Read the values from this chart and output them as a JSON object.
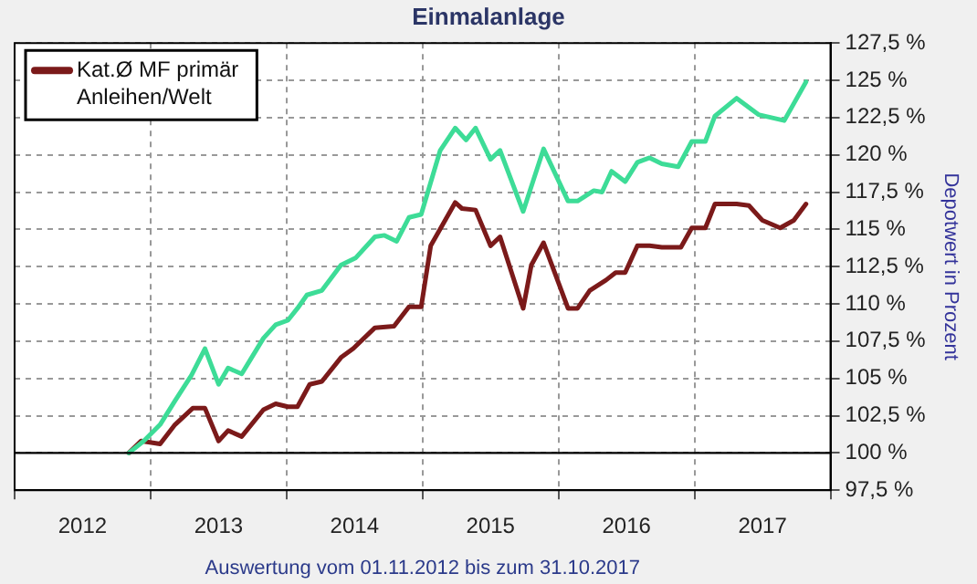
{
  "chart_data": {
    "type": "line",
    "title": "Einmalanlage",
    "ylabel": "Depotwert in Prozent",
    "annotations": [
      "Auswertung vom 01.11.2012 bis zum 31.10.2017"
    ],
    "xlim": [
      2012,
      2018
    ],
    "xticks": [
      {
        "value": 2012,
        "label": null
      },
      {
        "value": 2012.5,
        "label": "2012"
      },
      {
        "value": 2013,
        "label": null
      },
      {
        "value": 2013.5,
        "label": "2013"
      },
      {
        "value": 2014,
        "label": null
      },
      {
        "value": 2014.5,
        "label": "2014"
      },
      {
        "value": 2015,
        "label": null
      },
      {
        "value": 2015.5,
        "label": "2015"
      },
      {
        "value": 2016,
        "label": null
      },
      {
        "value": 2016.5,
        "label": "2016"
      },
      {
        "value": 2017,
        "label": null
      },
      {
        "value": 2017.5,
        "label": "2017"
      },
      {
        "value": 2018,
        "label": null
      }
    ],
    "ylim": [
      97.5,
      127.5
    ],
    "yticks": [
      {
        "value": 97.5,
        "label": "97,5 %"
      },
      {
        "value": 100,
        "label": "100 %"
      },
      {
        "value": 102.5,
        "label": "102,5 %"
      },
      {
        "value": 105,
        "label": "105 %"
      },
      {
        "value": 107.5,
        "label": "107,5 %"
      },
      {
        "value": 110,
        "label": "110 %"
      },
      {
        "value": 112.5,
        "label": "112,5 %"
      },
      {
        "value": 115,
        "label": "115 %"
      },
      {
        "value": 117.5,
        "label": "117,5 %"
      },
      {
        "value": 120,
        "label": "120 %"
      },
      {
        "value": 122.5,
        "label": "122,5 %"
      },
      {
        "value": 125,
        "label": "125 %"
      },
      {
        "value": 127.5,
        "label": "127,5 %"
      }
    ],
    "ref_lines": [
      {
        "axis": "y",
        "value": 100,
        "color": "#000000"
      }
    ],
    "grid": true,
    "legend": "top left",
    "line_style": "solid",
    "marker": "none",
    "series": [
      {
        "color": "#3ddc97",
        "x": [
          2012.84,
          2012.95,
          2013.07,
          2013.18,
          2013.3,
          2013.4,
          2013.5,
          2013.57,
          2013.67,
          2013.73,
          2013.83,
          2013.92,
          2014.01,
          2014.08,
          2014.15,
          2014.26,
          2014.4,
          2014.51,
          2014.65,
          2014.72,
          2014.81,
          2014.9,
          2014.99,
          2015.13,
          2015.24,
          2015.32,
          2015.39,
          2015.5,
          2015.57,
          2015.74,
          2015.89,
          2016.07,
          2016.14,
          2016.26,
          2016.32,
          2016.39,
          2016.49,
          2016.58,
          2016.67,
          2016.76,
          2016.88,
          2016.98,
          2017.08,
          2017.15,
          2017.31,
          2017.47,
          2017.66,
          2017.82
        ],
        "values": [
          100,
          100.8,
          101.9,
          103.5,
          105.2,
          107,
          104.6,
          105.7,
          105.3,
          106.2,
          107.7,
          108.6,
          108.9,
          109.7,
          110.6,
          110.9,
          112.6,
          113.1,
          114.5,
          114.6,
          114.2,
          115.8,
          116,
          120.3,
          121.8,
          121,
          121.8,
          119.7,
          120.3,
          116.2,
          120.4,
          116.9,
          116.9,
          117.6,
          117.5,
          118.9,
          118.2,
          119.5,
          119.8,
          119.4,
          119.2,
          120.9,
          120.9,
          122.6,
          123.8,
          122.7,
          122.3,
          124.9
        ]
      },
      {
        "name": "Kat.Ø MF primär Anleihen/Welt",
        "color": "#7b1a1a",
        "x": [
          2012.84,
          2012.93,
          2013.07,
          2013.18,
          2013.31,
          2013.4,
          2013.5,
          2013.57,
          2013.67,
          2013.83,
          2013.92,
          2014.01,
          2014.08,
          2014.17,
          2014.26,
          2014.4,
          2014.49,
          2014.65,
          2014.79,
          2014.9,
          2014.99,
          2015.06,
          2015.24,
          2015.29,
          2015.39,
          2015.5,
          2015.57,
          2015.74,
          2015.8,
          2015.89,
          2016.07,
          2016.14,
          2016.23,
          2016.35,
          2016.42,
          2016.49,
          2016.58,
          2016.67,
          2016.76,
          2016.9,
          2016.98,
          2017.08,
          2017.15,
          2017.31,
          2017.4,
          2017.5,
          2017.63,
          2017.73,
          2017.82
        ],
        "values": [
          100,
          100.8,
          100.6,
          101.9,
          103,
          103,
          100.8,
          101.5,
          101.1,
          102.9,
          103.3,
          103.1,
          103.1,
          104.6,
          104.8,
          106.4,
          107,
          108.4,
          108.5,
          109.8,
          109.8,
          113.9,
          116.8,
          116.4,
          116.3,
          113.9,
          114.5,
          109.7,
          112.6,
          114.1,
          109.7,
          109.7,
          110.9,
          111.6,
          112.1,
          112.1,
          113.9,
          113.9,
          113.8,
          113.8,
          115.1,
          115.1,
          116.7,
          116.7,
          116.6,
          115.6,
          115.1,
          115.6,
          116.7
        ]
      }
    ]
  }
}
